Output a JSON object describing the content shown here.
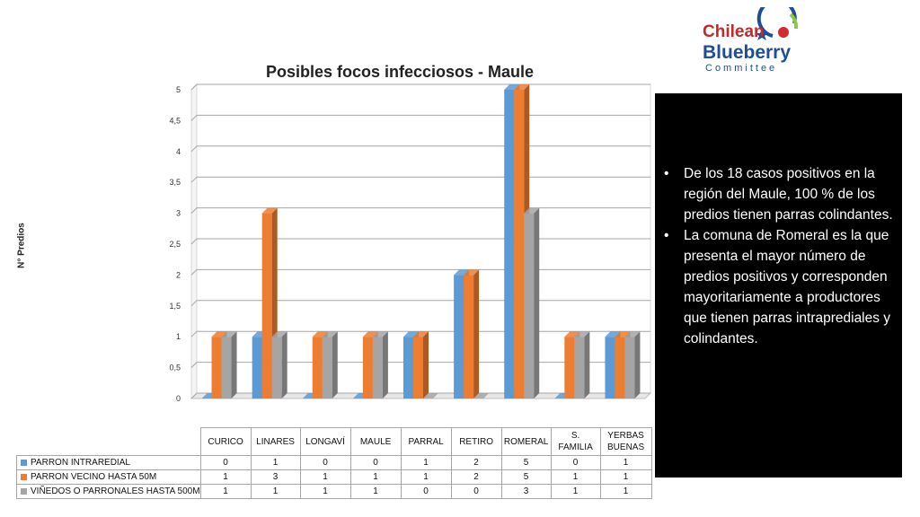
{
  "logo": {
    "line1": "Chilean",
    "line2": "Blueberry",
    "line3": "Committee"
  },
  "chart_data": {
    "type": "bar",
    "title": "Posibles focos infecciosos - Maule",
    "ylabel": "N° Predios",
    "xlabel": "",
    "ylim": [
      0,
      5
    ],
    "yticks": [
      "0",
      "0,5",
      "1",
      "1,5",
      "2",
      "2,5",
      "3",
      "3,5",
      "4",
      "4,5",
      "5"
    ],
    "grid": true,
    "three_d": true,
    "legend": "data-table",
    "categories": [
      [
        "CURICO"
      ],
      [
        "LINARES"
      ],
      [
        "LONGAVÍ"
      ],
      [
        "MAULE"
      ],
      [
        "PARRAL"
      ],
      [
        "RETIRO"
      ],
      [
        "ROMERAL"
      ],
      [
        "S.",
        "FAMILIA"
      ],
      [
        "YERBAS",
        "BUENAS"
      ]
    ],
    "series": [
      {
        "name": "PARRON INTRAREDIAL",
        "color": "#5b9bd5",
        "values": [
          0,
          1,
          0,
          0,
          1,
          2,
          5,
          0,
          1
        ]
      },
      {
        "name": "PARRON VECINO HASTA 50M",
        "color": "#ed7d31",
        "values": [
          1,
          3,
          1,
          1,
          1,
          2,
          5,
          1,
          1
        ]
      },
      {
        "name": "VIÑEDOS O PARRONALES HASTA 500M",
        "color": "#a5a5a5",
        "values": [
          1,
          1,
          1,
          1,
          0,
          0,
          3,
          1,
          1
        ]
      }
    ]
  },
  "notes": [
    "De los 18 casos positivos  en la región del Maule, 100 % de los predios tienen parras colindantes.",
    "La comuna de Romeral es la que presenta el mayor número de predios positivos y corresponden mayoritariamente a productores que tienen parras intraprediales y colindantes."
  ]
}
